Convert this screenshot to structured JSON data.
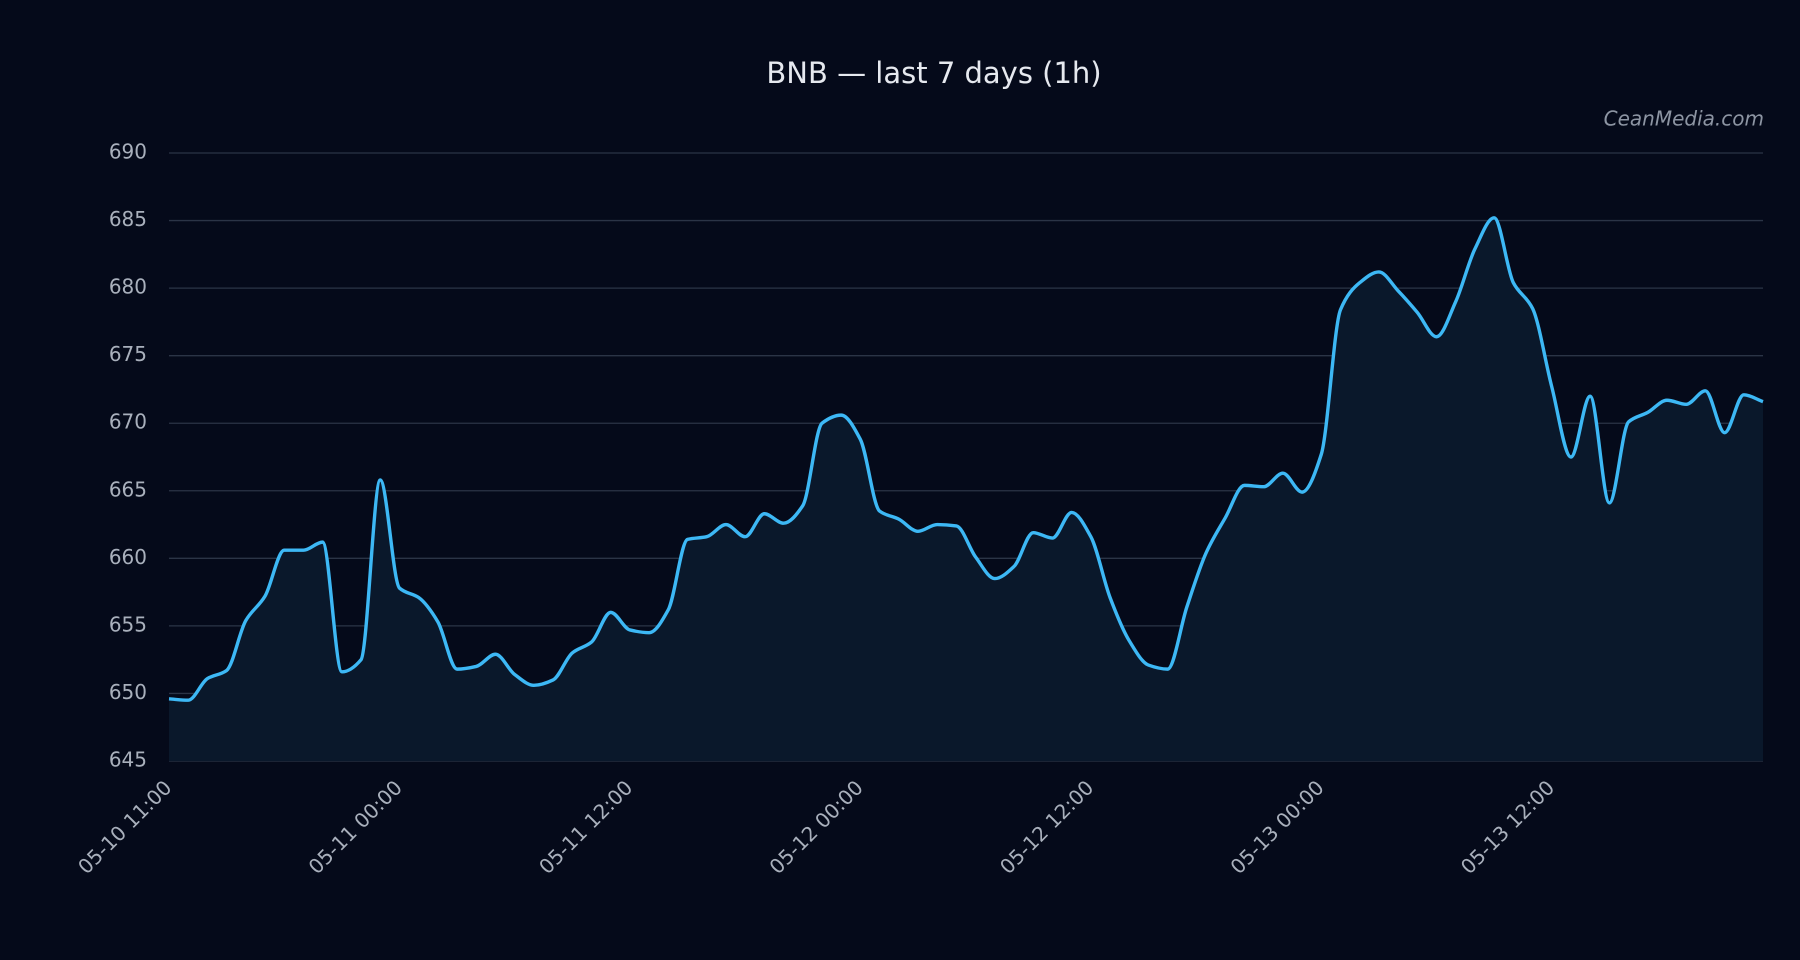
{
  "chart_data": {
    "type": "line",
    "title": "BNB — last 7 days (1h)",
    "annotation": "CeanMedia.com",
    "categories": [
      "05-10 11:00",
      null,
      null,
      null,
      null,
      null,
      null,
      null,
      null,
      null,
      null,
      null,
      "05-11 00:00",
      null,
      null,
      null,
      null,
      null,
      null,
      null,
      null,
      null,
      null,
      null,
      "05-11 12:00",
      null,
      null,
      null,
      null,
      null,
      null,
      null,
      null,
      null,
      null,
      null,
      "05-12 00:00",
      null,
      null,
      null,
      null,
      null,
      null,
      null,
      null,
      null,
      null,
      null,
      "05-12 12:00",
      null,
      null,
      null,
      null,
      null,
      null,
      null,
      null,
      null,
      null,
      null,
      "05-13 00:00",
      null,
      null,
      null,
      null,
      null,
      null,
      null,
      null,
      null,
      null,
      null,
      "05-13 12:00",
      null,
      null,
      null,
      null,
      null,
      null,
      null,
      null,
      null,
      null,
      null
    ],
    "values": [
      649.6,
      649.5,
      651.1,
      651.7,
      655.4,
      657.2,
      660.6,
      660.6,
      661.2,
      651.6,
      652.5,
      665.8,
      657.8,
      657.1,
      655.3,
      651.8,
      652.0,
      652.9,
      651.4,
      650.6,
      651.0,
      653.0,
      653.8,
      656.0,
      654.7,
      654.5,
      656.2,
      661.4,
      661.6,
      662.5,
      661.6,
      663.3,
      662.6,
      663.9,
      670.0,
      670.6,
      668.8,
      663.5,
      662.9,
      662.0,
      662.5,
      662.4,
      660.1,
      658.5,
      659.4,
      661.9,
      661.5,
      663.4,
      661.6,
      657.1,
      653.9,
      652.1,
      651.8,
      656.4,
      660.4,
      663.0,
      665.4,
      665.3,
      666.3,
      664.9,
      667.7,
      678.4,
      680.4,
      681.2,
      679.8,
      678.2,
      676.4,
      679.0,
      682.9,
      685.2,
      680.4,
      678.5,
      672.7,
      667.5,
      672.0,
      664.1,
      670.1,
      670.8,
      671.7,
      671.4,
      672.4,
      669.3,
      672.1,
      671.6
    ],
    "color": "#3db8f5",
    "area": true,
    "ylim": [
      645,
      690
    ],
    "yticks": [
      645,
      650,
      655,
      660,
      665,
      670,
      675,
      680,
      685,
      690
    ],
    "grid": true
  }
}
